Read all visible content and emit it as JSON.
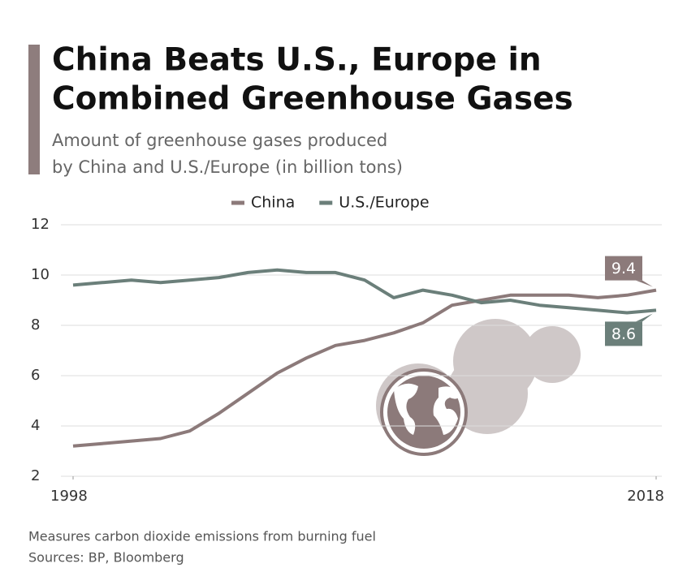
{
  "chart_data": {
    "type": "line",
    "title": [
      "China Beats U.S., Europe in",
      "Combined Greenhouse Gases"
    ],
    "subtitle": [
      "Amount of greenhouse gases produced",
      "by China and U.S./Europe (in billion tons)"
    ],
    "notes": [
      "Measures carbon dioxide emissions from burning fuel",
      "Sources: BP, Bloomberg"
    ],
    "x": [
      1998,
      1999,
      2000,
      2001,
      2002,
      2003,
      2004,
      2005,
      2006,
      2007,
      2008,
      2009,
      2010,
      2011,
      2012,
      2013,
      2014,
      2015,
      2016,
      2017,
      2018
    ],
    "xlim": [
      1998,
      2018
    ],
    "xticks": [
      1998,
      2018
    ],
    "ylim": [
      2,
      12
    ],
    "yticks": [
      2,
      4,
      6,
      8,
      10,
      12
    ],
    "grid": true,
    "series": [
      {
        "name": "China",
        "color": "#8c7a7a",
        "values": [
          3.2,
          3.3,
          3.4,
          3.5,
          3.8,
          4.5,
          5.3,
          6.1,
          6.7,
          7.2,
          7.4,
          7.7,
          8.1,
          8.8,
          9.0,
          9.2,
          9.2,
          9.2,
          9.1,
          9.2,
          9.4
        ]
      },
      {
        "name": "U.S./Europe",
        "color": "#6b7f7a",
        "values": [
          9.6,
          9.7,
          9.8,
          9.7,
          9.8,
          9.9,
          10.1,
          10.2,
          10.1,
          10.1,
          9.8,
          9.1,
          9.4,
          9.2,
          8.9,
          9.0,
          8.8,
          8.7,
          8.6,
          8.5,
          8.6
        ]
      }
    ]
  }
}
